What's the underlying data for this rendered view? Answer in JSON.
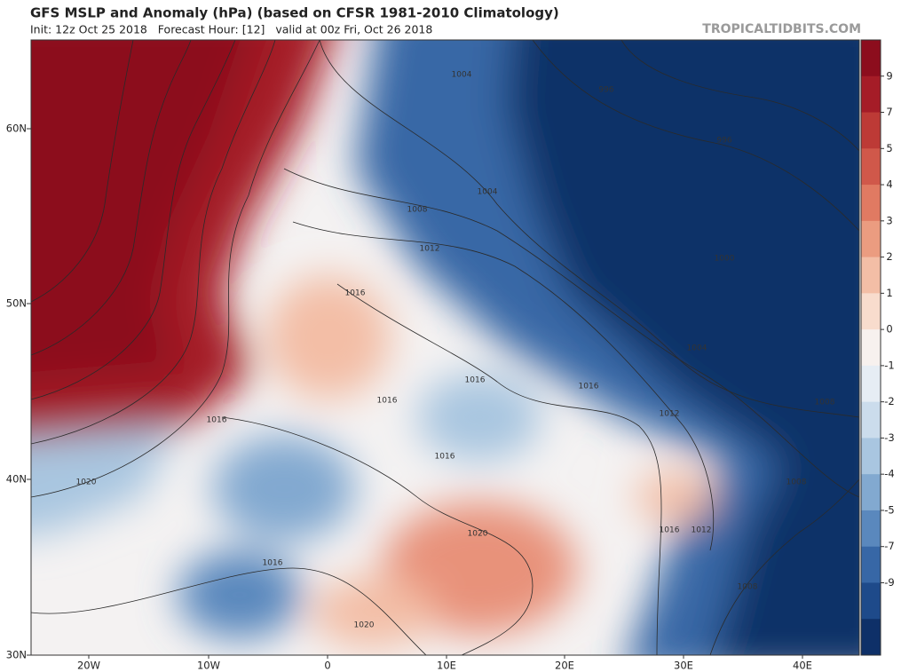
{
  "header": {
    "title": "GFS MSLP and Anomaly (hPa) (based on CFSR 1981-2010 Climatology)",
    "subtitle": "Init: 12z Oct 25 2018   Forecast Hour: [12]   valid at 00z Fri, Oct 26 2018",
    "source": "TROPICALTIDBITS.COM"
  },
  "map": {
    "lat_labels": [
      "60N",
      "50N",
      "40N",
      "30N"
    ],
    "lon_labels": [
      "20W",
      "10W",
      "0",
      "10E",
      "20E",
      "30E",
      "40E"
    ],
    "contour_labels": [
      "1004",
      "996",
      "996",
      "1004",
      "1008",
      "1012",
      "1000",
      "1016",
      "1004",
      "1016",
      "1016",
      "1016",
      "1012",
      "1008",
      "1016",
      "1016",
      "1020",
      "1008",
      "1020",
      "1016",
      "1012",
      "1016",
      "1008",
      "1020"
    ]
  },
  "colorbar": {
    "ticks": [
      9,
      7,
      5,
      4,
      3,
      2,
      1,
      0,
      -1,
      -2,
      -3,
      -4,
      -5,
      -7,
      -9
    ],
    "colors": [
      "#8c0d1d",
      "#a51c27",
      "#bd3a36",
      "#d0584a",
      "#e07a62",
      "#eb9c80",
      "#f3bea6",
      "#f8dccd",
      "#f7f1ee",
      "#e6edf4",
      "#cbdcec",
      "#a9c6e0",
      "#82a9d0",
      "#5a88bd",
      "#3767a6",
      "#1e4a8a",
      "#0e3068"
    ]
  }
}
